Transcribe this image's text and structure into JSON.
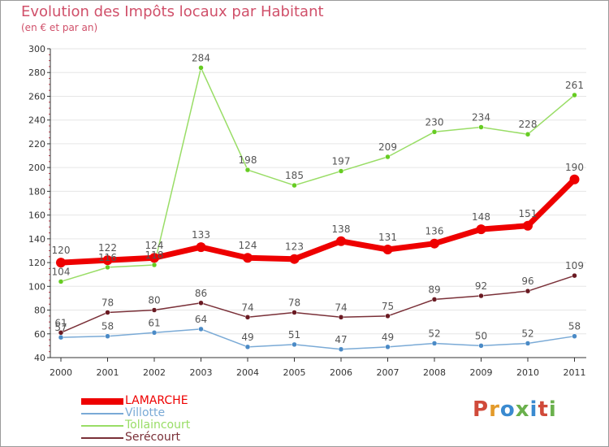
{
  "colors": {
    "title": "#d0506a",
    "axis": "#333333",
    "grid": "#e6e6e6",
    "tick_text": "#333333",
    "label_text": "#555555",
    "logo": [
      "#d04a3a",
      "#e39a2a",
      "#3a8ad0",
      "#6ab04c",
      "#3a8ad0",
      "#d04a3a",
      "#6ab04c"
    ]
  },
  "chart_data": {
    "type": "line",
    "title": "Evolution des Impôts locaux par Habitant",
    "subtitle": "(en € et par an)",
    "xlabel": "",
    "ylabel": "",
    "ylim": [
      40,
      300
    ],
    "yticks": [
      40,
      60,
      80,
      100,
      120,
      140,
      160,
      180,
      200,
      220,
      240,
      260,
      280,
      300
    ],
    "categories": [
      "2000",
      "2001",
      "2002",
      "2003",
      "2004",
      "2005",
      "2006",
      "2007",
      "2008",
      "2009",
      "2010",
      "2011"
    ],
    "series": [
      {
        "name": "Tollaincourt",
        "color": "#99dd66",
        "marker": "#66cc22",
        "width": 1.5,
        "r": 3,
        "labels_below": false,
        "values": [
          104,
          116,
          118,
          284,
          198,
          185,
          197,
          209,
          230,
          234,
          228,
          261
        ]
      },
      {
        "name": "Serécourt",
        "color": "#7a3038",
        "marker": "#6a1a22",
        "width": 1.5,
        "r": 3,
        "labels_below": false,
        "values": [
          61,
          78,
          80,
          86,
          74,
          78,
          74,
          75,
          89,
          92,
          96,
          109
        ]
      },
      {
        "name": "Villotte",
        "color": "#7aaad6",
        "marker": "#4a8ac6",
        "width": 1.5,
        "r": 3,
        "labels_below": false,
        "values": [
          57,
          58,
          61,
          64,
          49,
          51,
          47,
          49,
          52,
          50,
          52,
          58
        ]
      },
      {
        "name": "LAMARCHE",
        "color": "#ee0000",
        "marker": "#ee0000",
        "width": 7,
        "r": 6,
        "labels_below": false,
        "values": [
          120,
          122,
          124,
          133,
          124,
          123,
          138,
          131,
          136,
          148,
          151,
          190
        ]
      }
    ],
    "data_labels": [
      {
        "series": "LAMARCHE",
        "labels": [
          "120",
          "122",
          "124",
          "133",
          "124",
          "123",
          "138",
          "131",
          "136",
          "148",
          "151",
          "190"
        ]
      },
      {
        "series": "Tollaincourt",
        "labels": [
          "104",
          "116",
          "118",
          "284",
          "198",
          "185",
          "197",
          "209",
          "230",
          "234",
          "228",
          "261"
        ]
      },
      {
        "series": "Serécourt",
        "labels": [
          "61",
          "78",
          "80",
          "86",
          "74",
          "78",
          "74",
          "75",
          "89",
          "92",
          "96",
          "109"
        ]
      },
      {
        "series": "Villotte",
        "labels": [
          "57",
          "58",
          "61",
          "64",
          "49",
          "51",
          "47",
          "49",
          "52",
          "50",
          "52",
          "58"
        ]
      }
    ],
    "legend": [
      {
        "label": "LAMARCHE",
        "color": "#ee0000"
      },
      {
        "label": "Villotte",
        "color": "#7aaad6"
      },
      {
        "label": "Tollaincourt",
        "color": "#99dd66"
      },
      {
        "label": "Serécourt",
        "color": "#7a3038"
      }
    ]
  },
  "logo": {
    "letters": [
      "P",
      "r",
      "o",
      "x",
      "i",
      "t",
      "i"
    ]
  }
}
